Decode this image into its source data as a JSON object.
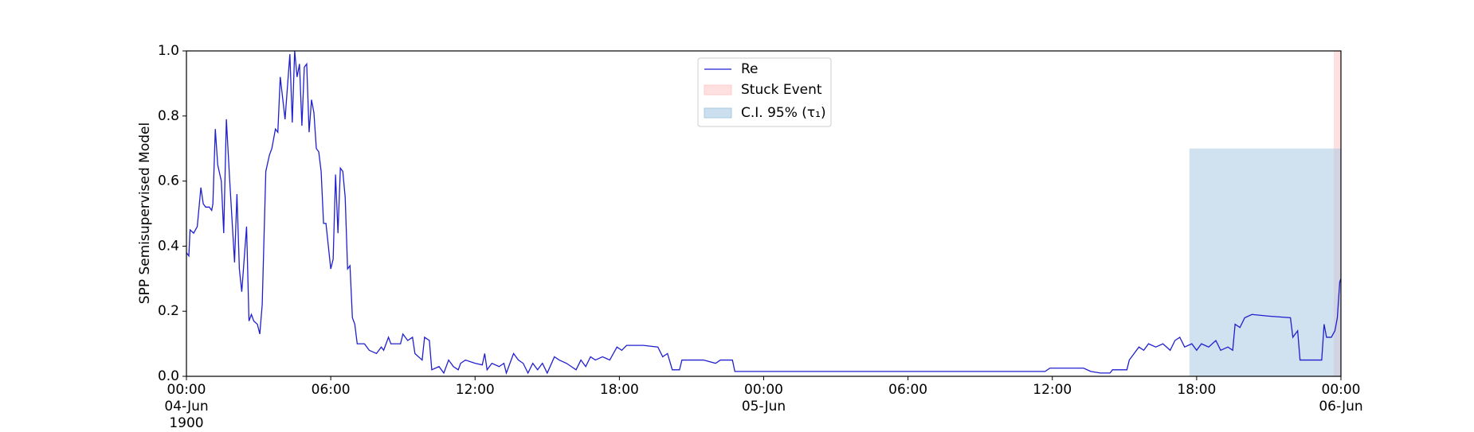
{
  "chart_data": {
    "type": "line",
    "ylabel": "SPP Semisupervised Model",
    "xlim": [
      0,
      48
    ],
    "ylim": [
      0,
      1
    ],
    "xticks": [
      {
        "value": 0,
        "label": "00:00\n04-Jun\n1900"
      },
      {
        "value": 6,
        "label": "06:00"
      },
      {
        "value": 12,
        "label": "12:00"
      },
      {
        "value": 18,
        "label": "18:00"
      },
      {
        "value": 24,
        "label": "00:00\n05-Jun"
      },
      {
        "value": 30,
        "label": "06:00"
      },
      {
        "value": 36,
        "label": "12:00"
      },
      {
        "value": 42,
        "label": "18:00"
      },
      {
        "value": 48,
        "label": "00:00\n06-Jun"
      }
    ],
    "yticks": [
      {
        "value": 0,
        "label": "0.0"
      },
      {
        "value": 0.2,
        "label": "0.2"
      },
      {
        "value": 0.4,
        "label": "0.4"
      },
      {
        "value": 0.6,
        "label": "0.6"
      },
      {
        "value": 0.8,
        "label": "0.8"
      },
      {
        "value": 1,
        "label": "1.0"
      }
    ],
    "x": [
      0,
      0.1,
      0.15,
      0.3,
      0.45,
      0.6,
      0.7,
      0.8,
      0.95,
      1.05,
      1.1,
      1.2,
      1.3,
      1.45,
      1.55,
      1.66,
      1.8,
      2.0,
      2.1,
      2.2,
      2.3,
      2.5,
      2.6,
      2.7,
      2.8,
      2.95,
      3.05,
      3.15,
      3.3,
      3.45,
      3.55,
      3.7,
      3.8,
      3.9,
      4.1,
      4.3,
      4.4,
      4.5,
      4.6,
      4.7,
      4.8,
      4.9,
      5.0,
      5.1,
      5.2,
      5.3,
      5.4,
      5.5,
      5.6,
      5.7,
      5.8,
      6.0,
      6.1,
      6.2,
      6.3,
      6.4,
      6.5,
      6.6,
      6.7,
      6.8,
      6.9,
      7.0,
      7.1,
      7.4,
      7.6,
      7.9,
      8.1,
      8.2,
      8.4,
      8.5,
      8.9,
      9.0,
      9.2,
      9.4,
      9.5,
      9.8,
      9.9,
      10.1,
      10.2,
      10.5,
      10.7,
      10.9,
      11.1,
      11.3,
      11.4,
      11.6,
      12.0,
      12.3,
      12.4,
      12.5,
      12.7,
      13.0,
      13.2,
      13.3,
      13.6,
      13.8,
      14.0,
      14.2,
      14.4,
      14.6,
      14.8,
      15.0,
      15.3,
      15.5,
      15.8,
      16.0,
      16.2,
      16.4,
      16.6,
      16.8,
      17.0,
      17.3,
      17.6,
      17.9,
      18.1,
      18.3,
      19.0,
      19.6,
      19.8,
      20.0,
      20.2,
      20.5,
      20.6,
      21.5,
      22.0,
      22.2,
      22.7,
      22.8,
      24.0,
      35.7,
      35.9,
      37.3,
      37.6,
      38.0,
      38.4,
      38.5,
      39.1,
      39.2,
      39.4,
      39.6,
      39.8,
      40.0,
      40.3,
      40.6,
      40.9,
      41.1,
      41.3,
      41.5,
      41.8,
      42.0,
      42.2,
      42.5,
      42.8,
      43.0,
      43.3,
      43.5,
      43.6,
      43.8,
      44.0,
      44.3,
      45.0,
      45.9,
      46.0,
      46.2,
      46.3,
      47.2,
      47.3,
      47.4,
      47.6,
      47.75,
      47.85,
      47.95,
      48.0
    ],
    "series": [
      {
        "name": "Re",
        "color": "#1f1fcf",
        "values": [
          0.38,
          0.37,
          0.45,
          0.44,
          0.46,
          0.58,
          0.53,
          0.52,
          0.52,
          0.51,
          0.53,
          0.76,
          0.65,
          0.6,
          0.44,
          0.79,
          0.6,
          0.35,
          0.56,
          0.33,
          0.26,
          0.46,
          0.17,
          0.19,
          0.17,
          0.16,
          0.13,
          0.22,
          0.63,
          0.68,
          0.7,
          0.76,
          0.75,
          0.92,
          0.79,
          0.99,
          0.78,
          1.0,
          0.92,
          0.96,
          0.77,
          0.95,
          0.96,
          0.75,
          0.85,
          0.81,
          0.7,
          0.69,
          0.63,
          0.47,
          0.47,
          0.33,
          0.36,
          0.62,
          0.44,
          0.64,
          0.63,
          0.55,
          0.33,
          0.34,
          0.18,
          0.16,
          0.1,
          0.1,
          0.08,
          0.07,
          0.09,
          0.08,
          0.12,
          0.1,
          0.1,
          0.13,
          0.11,
          0.12,
          0.07,
          0.05,
          0.12,
          0.11,
          0.02,
          0.03,
          0.01,
          0.05,
          0.03,
          0.02,
          0.04,
          0.05,
          0.04,
          0.035,
          0.07,
          0.02,
          0.04,
          0.03,
          0.04,
          0.01,
          0.07,
          0.05,
          0.04,
          0.01,
          0.04,
          0.02,
          0.04,
          0.01,
          0.06,
          0.05,
          0.04,
          0.03,
          0.02,
          0.05,
          0.03,
          0.06,
          0.05,
          0.06,
          0.05,
          0.09,
          0.08,
          0.095,
          0.095,
          0.09,
          0.06,
          0.07,
          0.02,
          0.02,
          0.05,
          0.05,
          0.04,
          0.05,
          0.05,
          0.015,
          0.015,
          0.015,
          0.025,
          0.025,
          0.015,
          0.01,
          0.01,
          0.02,
          0.02,
          0.05,
          0.07,
          0.09,
          0.08,
          0.1,
          0.09,
          0.1,
          0.08,
          0.11,
          0.12,
          0.09,
          0.1,
          0.08,
          0.1,
          0.09,
          0.11,
          0.08,
          0.09,
          0.08,
          0.16,
          0.15,
          0.18,
          0.19,
          0.185,
          0.18,
          0.12,
          0.14,
          0.05,
          0.05,
          0.16,
          0.12,
          0.12,
          0.14,
          0.18,
          0.29,
          0.3
        ]
      }
    ],
    "spans": [
      {
        "name": "Stuck Event",
        "color": "#ffcccc",
        "x": [
          47.7,
          48
        ]
      },
      {
        "name": "C.I. 95% (τ₁)",
        "color": "#a9c9e2",
        "x": [
          41.7,
          48
        ],
        "y": [
          0,
          0.7
        ]
      }
    ]
  }
}
